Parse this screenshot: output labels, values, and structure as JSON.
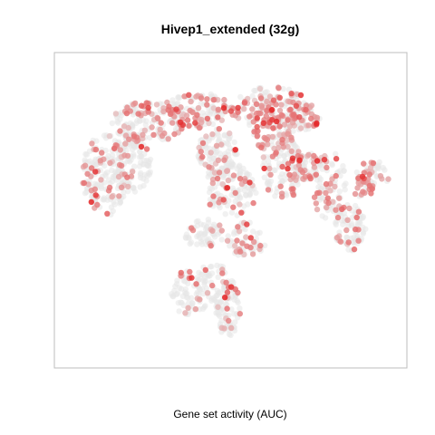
{
  "chart_data": {
    "type": "scatter",
    "title": "Hivep1_extended (32g)",
    "xlabel": "Gene set activity (AUC)",
    "ylabel": "",
    "grid": false,
    "legend": "none",
    "color_low": "#e6e6e6",
    "color_high": "#e41a1c",
    "clusters": [
      {
        "cx": 0.12,
        "cy": 0.62,
        "rx": 0.07,
        "ry": 0.14,
        "n": 170,
        "act": 0.22
      },
      {
        "cx": 0.2,
        "cy": 0.66,
        "rx": 0.06,
        "ry": 0.1,
        "n": 120,
        "act": 0.18
      },
      {
        "cx": 0.25,
        "cy": 0.8,
        "rx": 0.11,
        "ry": 0.07,
        "n": 150,
        "act": 0.32
      },
      {
        "cx": 0.4,
        "cy": 0.84,
        "rx": 0.11,
        "ry": 0.06,
        "n": 130,
        "act": 0.42
      },
      {
        "cx": 0.5,
        "cy": 0.57,
        "rx": 0.08,
        "ry": 0.09,
        "n": 130,
        "act": 0.18
      },
      {
        "cx": 0.46,
        "cy": 0.7,
        "rx": 0.06,
        "ry": 0.08,
        "n": 100,
        "act": 0.2
      },
      {
        "cx": 0.62,
        "cy": 0.85,
        "rx": 0.12,
        "ry": 0.07,
        "n": 160,
        "act": 0.5
      },
      {
        "cx": 0.66,
        "cy": 0.64,
        "rx": 0.07,
        "ry": 0.1,
        "n": 120,
        "act": 0.3
      },
      {
        "cx": 0.8,
        "cy": 0.58,
        "rx": 0.05,
        "ry": 0.12,
        "n": 90,
        "act": 0.28
      },
      {
        "cx": 0.86,
        "cy": 0.44,
        "rx": 0.05,
        "ry": 0.08,
        "n": 80,
        "act": 0.18
      },
      {
        "cx": 0.93,
        "cy": 0.62,
        "rx": 0.05,
        "ry": 0.05,
        "n": 50,
        "act": 0.38
      },
      {
        "cx": 0.38,
        "cy": 0.22,
        "rx": 0.06,
        "ry": 0.08,
        "n": 70,
        "act": 0.15
      },
      {
        "cx": 0.45,
        "cy": 0.24,
        "rx": 0.06,
        "ry": 0.08,
        "n": 60,
        "act": 0.15
      },
      {
        "cx": 0.49,
        "cy": 0.17,
        "rx": 0.04,
        "ry": 0.1,
        "n": 80,
        "act": 0.08
      },
      {
        "cx": 0.42,
        "cy": 0.42,
        "rx": 0.06,
        "ry": 0.05,
        "n": 60,
        "act": 0.12
      },
      {
        "cx": 0.55,
        "cy": 0.4,
        "rx": 0.06,
        "ry": 0.06,
        "n": 60,
        "act": 0.25
      },
      {
        "cx": 0.63,
        "cy": 0.76,
        "rx": 0.06,
        "ry": 0.06,
        "n": 70,
        "act": 0.7
      },
      {
        "cx": 0.72,
        "cy": 0.82,
        "rx": 0.05,
        "ry": 0.05,
        "n": 50,
        "act": 0.6
      },
      {
        "cx": 0.72,
        "cy": 0.65,
        "rx": 0.05,
        "ry": 0.05,
        "n": 50,
        "act": 0.45
      },
      {
        "cx": 0.9,
        "cy": 0.58,
        "rx": 0.03,
        "ry": 0.04,
        "n": 30,
        "act": 0.5
      }
    ],
    "xlim": [
      0,
      1
    ],
    "ylim": [
      0,
      1
    ]
  }
}
